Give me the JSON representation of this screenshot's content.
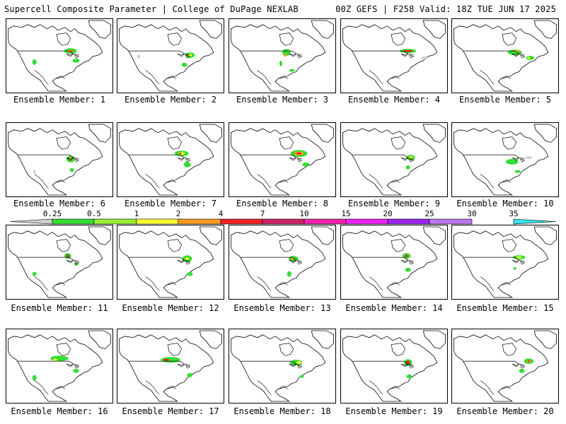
{
  "header": {
    "title": "Supercell Composite Parameter | College of DuPage NEXLAB",
    "run_info": "00Z GEFS | F258 Valid: 18Z TUE JUN 17 2025"
  },
  "colorbar": {
    "labels": [
      "0.25",
      "0.5",
      "1",
      "2",
      "4",
      "7",
      "10",
      "15",
      "20",
      "25",
      "30",
      "35"
    ],
    "colors": [
      "#cfcfcf",
      "#33dd33",
      "#99ee33",
      "#ffff33",
      "#ff9922",
      "#ee2222",
      "#cc2266",
      "#ee22aa",
      "#ee22ee",
      "#9922ee",
      "#bb77ee",
      "#33e6ee"
    ]
  },
  "members": [
    {
      "label": "Ensemble Member: 1"
    },
    {
      "label": "Ensemble Member: 2"
    },
    {
      "label": "Ensemble Member: 3"
    },
    {
      "label": "Ensemble Member: 4"
    },
    {
      "label": "Ensemble Member: 5"
    },
    {
      "label": "Ensemble Member: 6"
    },
    {
      "label": "Ensemble Member: 7"
    },
    {
      "label": "Ensemble Member: 8"
    },
    {
      "label": "Ensemble Member: 9"
    },
    {
      "label": "Ensemble Member: 10"
    },
    {
      "label": "Ensemble Member: 11"
    },
    {
      "label": "Ensemble Member: 12"
    },
    {
      "label": "Ensemble Member: 13"
    },
    {
      "label": "Ensemble Member: 14"
    },
    {
      "label": "Ensemble Member: 15"
    },
    {
      "label": "Ensemble Member: 16"
    },
    {
      "label": "Ensemble Member: 17"
    },
    {
      "label": "Ensemble Member: 18"
    },
    {
      "label": "Ensemble Member: 19"
    },
    {
      "label": "Ensemble Member: 20"
    }
  ]
}
